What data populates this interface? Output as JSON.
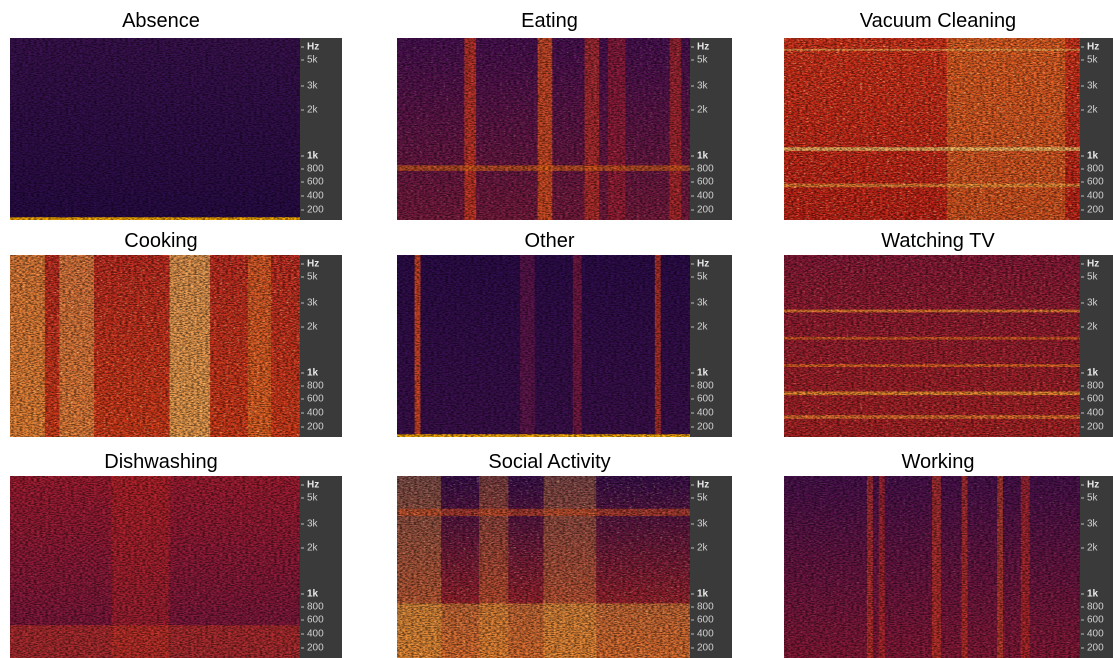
{
  "panels": [
    {
      "title": "Absence"
    },
    {
      "title": "Eating"
    },
    {
      "title": "Vacuum Cleaning"
    },
    {
      "title": "Cooking"
    },
    {
      "title": "Other"
    },
    {
      "title": "Watching TV"
    },
    {
      "title": "Dishwashing"
    },
    {
      "title": "Social Activity"
    },
    {
      "title": "Working"
    }
  ],
  "axis_labels": [
    "Hz",
    "5k",
    "3k",
    "2k",
    "1k",
    "800",
    "600",
    "400",
    "200"
  ]
}
